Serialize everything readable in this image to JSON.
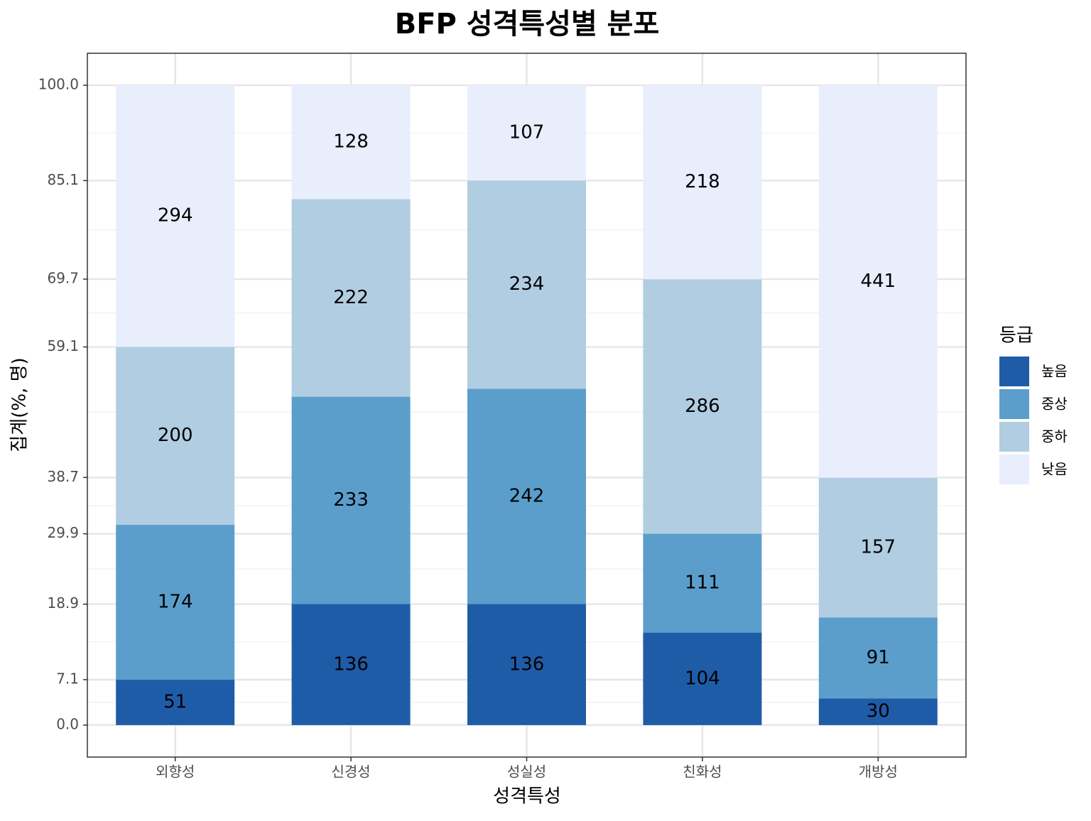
{
  "chart_data": {
    "type": "stacked_percent_bar",
    "title": "BFP 성격특성별 분포",
    "x_label": "성격특성",
    "y_label": "집계(%, 명)",
    "legend_title": "등급",
    "categories": [
      "외향성",
      "신경성",
      "성실성",
      "친화성",
      "개방성"
    ],
    "series": [
      {
        "name": "높음",
        "color": "#1f5ca8",
        "values": [
          51,
          136,
          136,
          104,
          30
        ]
      },
      {
        "name": "중상",
        "color": "#5b9ecb",
        "values": [
          174,
          233,
          242,
          111,
          91
        ]
      },
      {
        "name": "중하",
        "color": "#b0cde2",
        "values": [
          200,
          222,
          234,
          286,
          157
        ]
      },
      {
        "name": "낮음",
        "color": "#e8eefb",
        "values": [
          294,
          128,
          107,
          218,
          441
        ]
      }
    ],
    "ylim": [
      -5,
      105
    ],
    "yticks": [
      {
        "value": 0,
        "label": "0.0"
      },
      7.1,
      18.9,
      29.9,
      38.7,
      59.1,
      69.7,
      85.1,
      {
        "value": 100,
        "label": "100.0"
      }
    ],
    "grid": true,
    "legend": "right"
  }
}
